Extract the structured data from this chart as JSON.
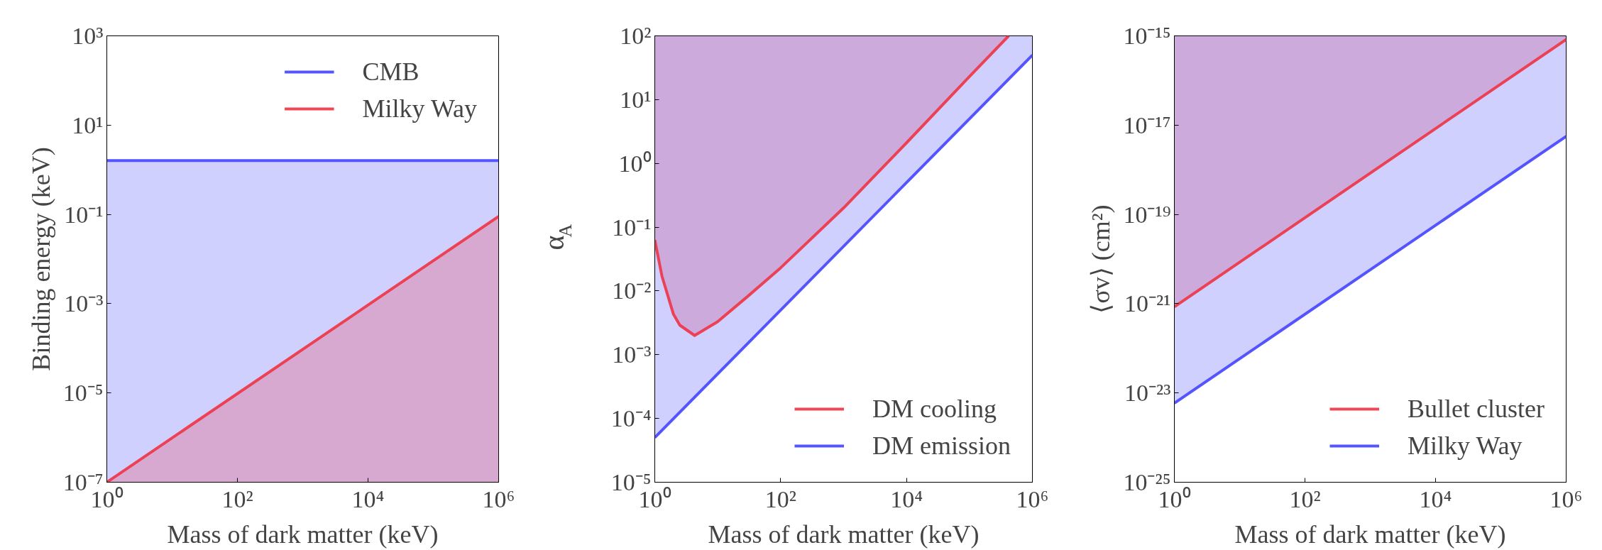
{
  "chart_data": [
    {
      "type": "line",
      "xlabel": "Mass of dark matter (keV)",
      "ylabel": "Binding energy (keV)",
      "log": "xy",
      "grid": false,
      "legend": "top right",
      "xlim": [
        1,
        1000000
      ],
      "ylim": [
        1e-07,
        1000
      ],
      "xticks": [
        {
          "value": 1,
          "label": "10⁰"
        },
        {
          "value": 100,
          "label": "10²"
        },
        {
          "value": 10000,
          "label": "10⁴"
        },
        {
          "value": 1000000,
          "label": "10⁶"
        }
      ],
      "yticks": [
        {
          "value": 1e-07,
          "label": "10⁻⁷"
        },
        {
          "value": 1e-05,
          "label": "10⁻⁵"
        },
        {
          "value": 0.001,
          "label": "10⁻³"
        },
        {
          "value": 0.1,
          "label": "10⁻¹"
        },
        {
          "value": 10,
          "label": "10¹"
        },
        {
          "value": 1000,
          "label": "10³"
        }
      ],
      "series": [
        {
          "name": "CMB",
          "color": "#4444ff",
          "x": [
            1,
            1000000
          ],
          "values": [
            1.6,
            1.6
          ],
          "lower": [
            1e-07,
            1e-07
          ],
          "upper": [
            1.6,
            1.6
          ]
        },
        {
          "name": "Milky Way",
          "color": "#ee3344",
          "x": [
            1,
            1000000
          ],
          "values": [
            1e-07,
            0.09
          ],
          "lower": [
            1e-07,
            1e-07
          ],
          "upper": [
            1e-07,
            0.09
          ]
        }
      ]
    },
    {
      "type": "line",
      "xlabel": "Mass of dark matter (keV)",
      "ylabel": "α$_{A}$",
      "log": "xy",
      "grid": false,
      "legend": "bottom right",
      "xlim": [
        1,
        1000000
      ],
      "ylim": [
        1e-05,
        100
      ],
      "xticks": [
        {
          "value": 1,
          "label": "10⁰"
        },
        {
          "value": 100,
          "label": "10²"
        },
        {
          "value": 10000,
          "label": "10⁴"
        },
        {
          "value": 1000000,
          "label": "10⁶"
        }
      ],
      "yticks": [
        {
          "value": 1e-05,
          "label": "10⁻⁵"
        },
        {
          "value": 0.0001,
          "label": "10⁻⁴"
        },
        {
          "value": 0.001,
          "label": "10⁻³"
        },
        {
          "value": 0.01,
          "label": "10⁻²"
        },
        {
          "value": 0.1,
          "label": "10⁻¹"
        },
        {
          "value": 1,
          "label": "10⁰"
        },
        {
          "value": 10,
          "label": "10¹"
        },
        {
          "value": 100,
          "label": "10²"
        }
      ],
      "series": [
        {
          "name": "DM cooling",
          "color": "#ee3344",
          "x": [
            1,
            1.3,
            1.98,
            2.5,
            4.3,
            10,
            29.5,
            100,
            1000,
            10000,
            100000,
            420000
          ],
          "values": [
            0.063,
            0.017,
            0.0043,
            0.0029,
            0.002,
            0.0033,
            0.0081,
            0.023,
            0.2,
            2.1,
            23,
            100
          ],
          "lower": [
            0.063,
            0.017,
            0.0043,
            0.0029,
            0.002,
            0.0033,
            0.0081,
            0.023,
            0.2,
            2.1,
            23,
            100
          ],
          "upper": [
            100,
            100,
            100,
            100,
            100,
            100,
            100,
            100,
            100,
            100,
            100,
            100
          ]
        },
        {
          "name": "DM emission",
          "color": "#4444ff",
          "x": [
            1,
            1000000
          ],
          "values": [
            5e-05,
            50
          ],
          "lower": [
            5e-05,
            50
          ],
          "upper": [
            100,
            100
          ]
        }
      ]
    },
    {
      "type": "line",
      "xlabel": "Mass of dark matter (keV)",
      "ylabel": "⟨σv⟩ (cm²)",
      "log": "xy",
      "grid": false,
      "legend": "bottom right",
      "xlim": [
        1,
        1000000
      ],
      "ylim": [
        1e-25,
        1e-15
      ],
      "xticks": [
        {
          "value": 1,
          "label": "10⁰"
        },
        {
          "value": 100,
          "label": "10²"
        },
        {
          "value": 10000,
          "label": "10⁴"
        },
        {
          "value": 1000000,
          "label": "10⁶"
        }
      ],
      "yticks": [
        {
          "value": 1e-25,
          "label": "10⁻²⁵"
        },
        {
          "value": 1e-23,
          "label": "10⁻²³"
        },
        {
          "value": 1e-21,
          "label": "10⁻²¹"
        },
        {
          "value": 1e-19,
          "label": "10⁻¹⁹"
        },
        {
          "value": 1e-17,
          "label": "10⁻¹⁷"
        },
        {
          "value": 1e-15,
          "label": "10⁻¹⁵"
        }
      ],
      "series": [
        {
          "name": "Bullet cluster",
          "color": "#ee3344",
          "x": [
            1,
            1000000
          ],
          "values": [
            8.5e-22,
            8.3e-16
          ],
          "lower": [
            8.5e-22,
            8.3e-16
          ],
          "upper": [
            1e-15,
            1e-15
          ]
        },
        {
          "name": "Milky Way",
          "color": "#4444ff",
          "x": [
            1,
            1000000
          ],
          "values": [
            5.9e-24,
            5.6e-18
          ],
          "lower": [
            5.9e-24,
            5.6e-18
          ],
          "upper": [
            1e-15,
            1e-15
          ]
        }
      ]
    }
  ]
}
